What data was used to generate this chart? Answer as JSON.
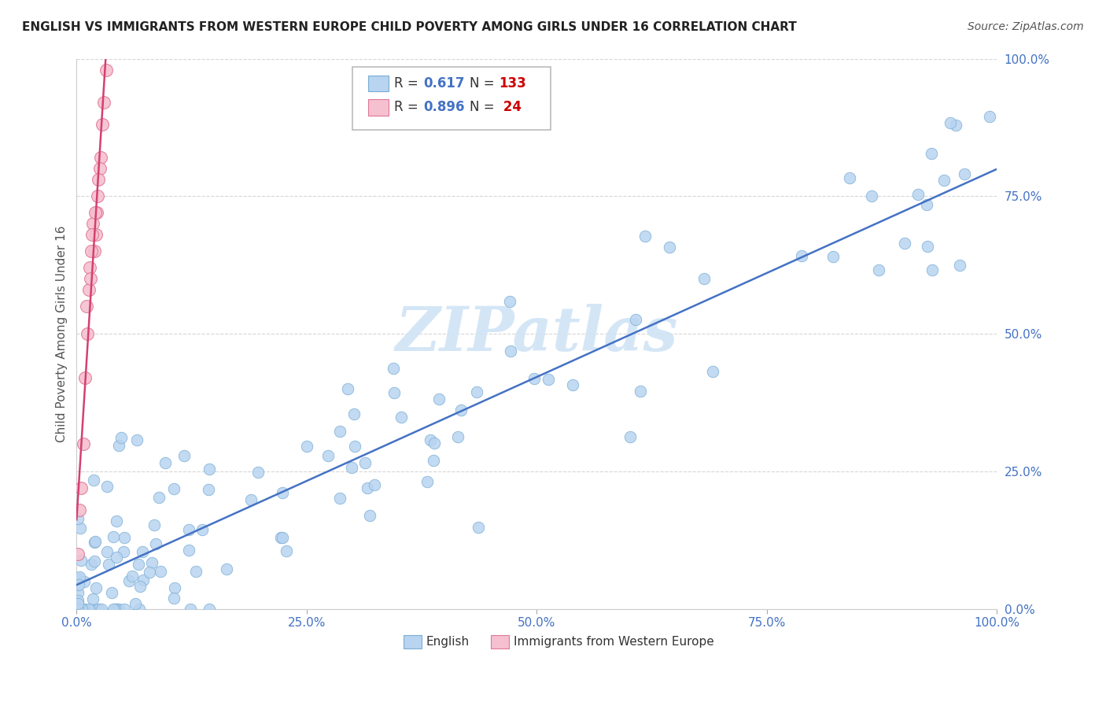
{
  "title": "ENGLISH VS IMMIGRANTS FROM WESTERN EUROPE CHILD POVERTY AMONG GIRLS UNDER 16 CORRELATION CHART",
  "source": "Source: ZipAtlas.com",
  "ylabel": "Child Poverty Among Girls Under 16",
  "english_color": "#b8d4f0",
  "english_edge_color": "#7aadd4",
  "immigrants_color": "#f5c0d0",
  "immigrants_edge_color": "#e07898",
  "line_english_color": "#4472c4",
  "line_immigrants_color": "#d44070",
  "background_color": "#ffffff",
  "watermark_color": "#d0e4f5",
  "r_value_color": "#4472c4",
  "n_value_color": "#cc0000",
  "tick_color": "#4472c4",
  "ylabel_color": "#555555",
  "title_color": "#222222",
  "source_color": "#555555"
}
